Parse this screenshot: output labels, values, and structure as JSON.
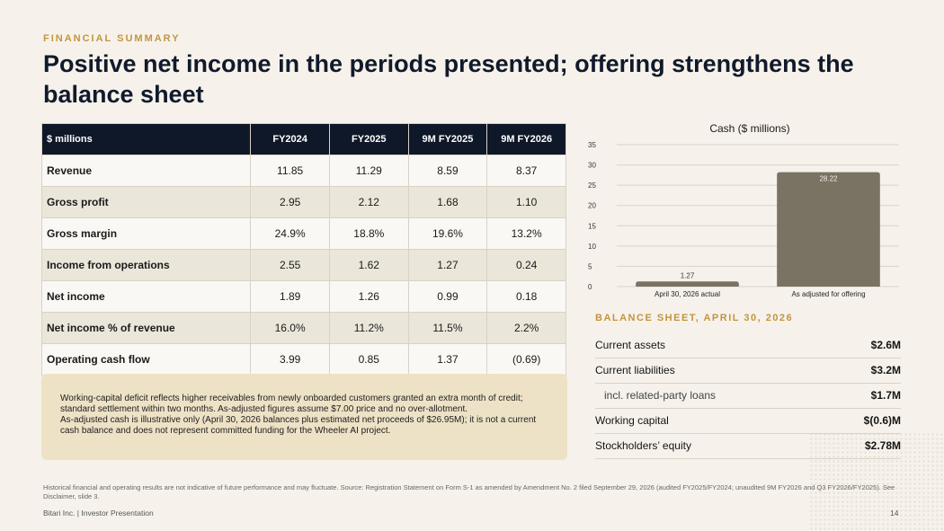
{
  "eyebrow": "FINANCIAL SUMMARY",
  "title": "Positive net income in the periods presented; offering strengthens the balance sheet",
  "table": {
    "headers": [
      "$ millions",
      "FY2024",
      "FY2025",
      "9M FY2025",
      "9M FY2026"
    ],
    "rows": [
      [
        "Revenue",
        "11.85",
        "11.29",
        "8.59",
        "8.37"
      ],
      [
        "Gross profit",
        "2.95",
        "2.12",
        "1.68",
        "1.10"
      ],
      [
        "Gross margin",
        "24.9%",
        "18.8%",
        "19.6%",
        "13.2%"
      ],
      [
        "Income from operations",
        "2.55",
        "1.62",
        "1.27",
        "0.24"
      ],
      [
        "Net income",
        "1.89",
        "1.26",
        "0.99",
        "0.18"
      ],
      [
        "Net income % of revenue",
        "16.0%",
        "11.2%",
        "11.5%",
        "2.2%"
      ],
      [
        "Operating cash flow",
        "3.99",
        "0.85",
        "1.37",
        "(0.69)"
      ]
    ]
  },
  "note": {
    "line1": "Working-capital deficit reflects higher receivables from newly onboarded customers granted an extra month of credit; standard settlement within two months. As-adjusted figures assume $7.00 price and no over-allotment.",
    "line2": "As-adjusted cash is illustrative only (April 30, 2026 balances plus estimated net proceeds of $26.95M); it is not a current cash balance and does not represent committed funding for the Wheeler AI project."
  },
  "chart_data": {
    "type": "bar",
    "title": "Cash ($ millions)",
    "categories": [
      "April 30, 2026 actual",
      "As adjusted for offering"
    ],
    "values": [
      1.27,
      28.22
    ],
    "value_labels": [
      "1.27",
      "28.22"
    ],
    "ylim": [
      0,
      35
    ],
    "yticks": [
      "0",
      "5",
      "10",
      "15",
      "20",
      "25",
      "30",
      "35"
    ],
    "grid": true,
    "bar_color": "#7a7263"
  },
  "balance_sheet": {
    "title": "BALANCE SHEET, APRIL 30, 2026",
    "rows": [
      {
        "label": "Current assets",
        "value": "$2.6M"
      },
      {
        "label": "Current liabilities",
        "value": "$3.2M"
      },
      {
        "label": "incl. related-party loans",
        "value": "$1.7M"
      },
      {
        "label": "Working capital",
        "value": "$(0.6)M"
      },
      {
        "label": "Stockholders’ equity",
        "value": "$2.78M"
      }
    ]
  },
  "footnote": "Historical financial and operating results are not indicative of future performance and may fluctuate. Source: Registration Statement on Form S-1 as amended by Amendment No. 2 filed September 29, 2026 (audited FY2025/FY2024; unaudited 9M FY2026 and Q3 FY2026/FY2025). See Disclaimer, slide 3.",
  "footer": "Bitari Inc.  |  Investor Presentation",
  "page_number": "14",
  "colors": {
    "accent": "#c4943f",
    "header_bg": "#0f1828",
    "note_bg": "#ede2c6",
    "page_bg": "#f6f2eb"
  }
}
